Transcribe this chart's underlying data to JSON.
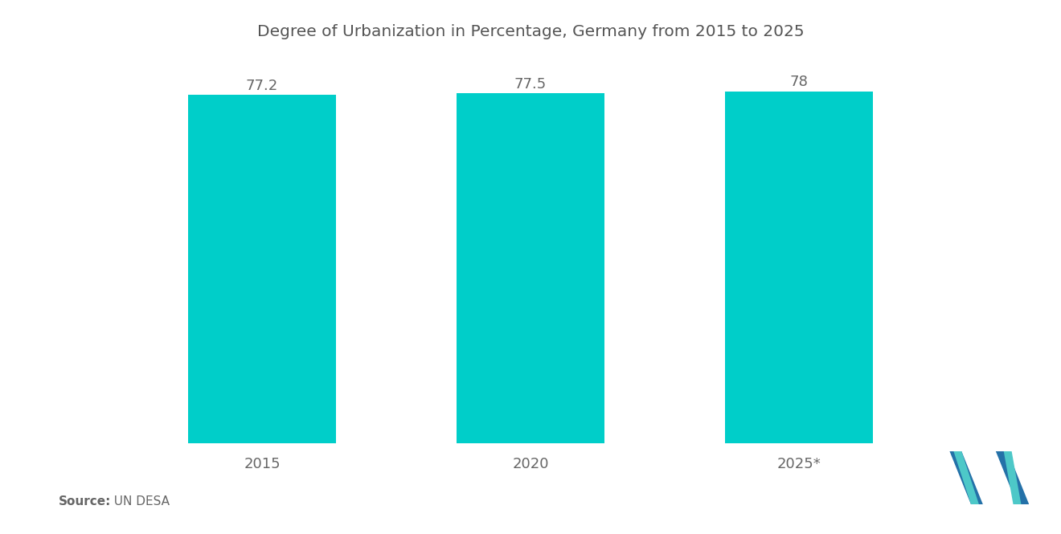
{
  "title": "Degree of Urbanization in Percentage, Germany from 2015 to 2025",
  "categories": [
    "2015",
    "2020",
    "2025*"
  ],
  "values": [
    77.2,
    77.5,
    78
  ],
  "bar_color": "#00CEC9",
  "value_labels": [
    "77.2",
    "77.5",
    "78"
  ],
  "ylim_min": 0,
  "ylim_max": 85,
  "background_color": "#ffffff",
  "source_bold": "Source:",
  "source_normal": "  UN DESA",
  "title_fontsize": 14.5,
  "label_fontsize": 13,
  "tick_fontsize": 13,
  "source_fontsize": 11,
  "bar_width": 0.55,
  "logo_blue": "#2471A8",
  "logo_teal": "#4DC8C8"
}
